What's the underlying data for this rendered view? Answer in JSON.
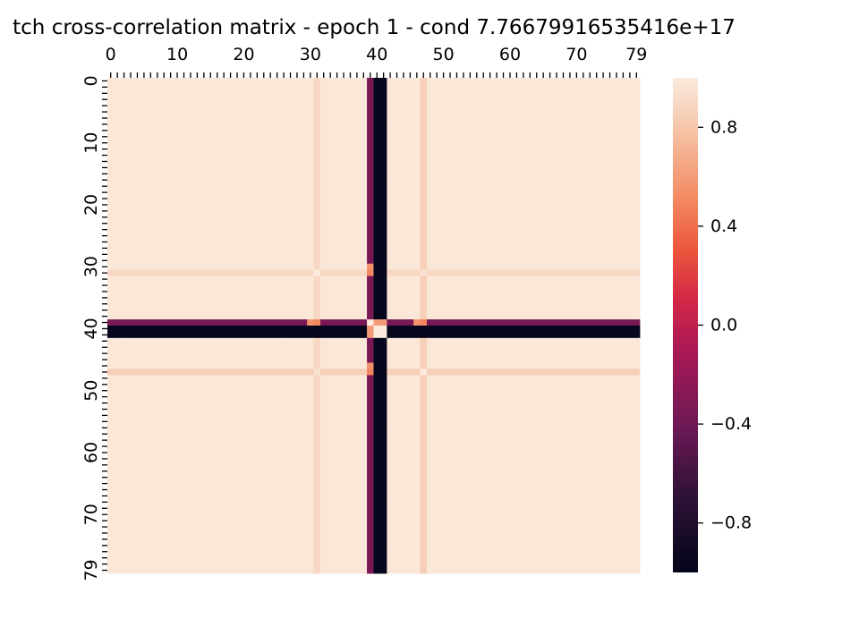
{
  "chart_data": {
    "type": "heatmap",
    "title": "tch cross-correlation matrix - epoch 1 - cond 7.76679916535416e+17",
    "n": 80,
    "x_ticks": [
      0,
      10,
      20,
      30,
      40,
      50,
      60,
      70,
      79
    ],
    "y_ticks": [
      0,
      10,
      20,
      30,
      40,
      50,
      60,
      70,
      79
    ],
    "xaxis_position": "top",
    "value_range": [
      -1.0,
      1.0
    ],
    "colorbar": {
      "ticks": [
        0.8,
        0.4,
        0.0,
        -0.4,
        -0.8
      ],
      "tick_labels": [
        "0.8",
        "0.4",
        "0.0",
        "−0.4",
        "−0.8"
      ],
      "colormap": "rocket"
    },
    "default_value": 0.98,
    "bands": [
      {
        "index": 31,
        "value": 0.9
      },
      {
        "index": 47,
        "value": 0.85
      },
      {
        "index": 39,
        "value": -0.35
      },
      {
        "index": 40,
        "value": -0.98
      },
      {
        "index": 41,
        "value": -0.98
      }
    ],
    "intersections": [
      {
        "i": 39,
        "j": 39,
        "value": 1.0
      },
      {
        "i": 40,
        "j": 40,
        "value": 1.0
      },
      {
        "i": 41,
        "j": 41,
        "value": 1.0
      },
      {
        "i": 40,
        "j": 41,
        "value": 1.0
      },
      {
        "i": 41,
        "j": 40,
        "value": 1.0
      },
      {
        "i": 40,
        "j": 39,
        "value": 0.6
      },
      {
        "i": 39,
        "j": 40,
        "value": 0.6
      },
      {
        "i": 41,
        "j": 39,
        "value": 0.6
      },
      {
        "i": 39,
        "j": 41,
        "value": 0.6
      },
      {
        "i": 30,
        "j": 39,
        "value": 0.55
      },
      {
        "i": 39,
        "j": 30,
        "value": 0.55
      },
      {
        "i": 46,
        "j": 39,
        "value": 0.55
      },
      {
        "i": 39,
        "j": 46,
        "value": 0.55
      },
      {
        "i": 31,
        "j": 39,
        "value": 0.5
      },
      {
        "i": 39,
        "j": 31,
        "value": 0.5
      },
      {
        "i": 47,
        "j": 39,
        "value": 0.5
      },
      {
        "i": 39,
        "j": 47,
        "value": 0.5
      },
      {
        "i": 31,
        "j": 31,
        "value": 1.0
      },
      {
        "i": 47,
        "j": 47,
        "value": 1.0
      },
      {
        "i": 31,
        "j": 47,
        "value": 0.95
      },
      {
        "i": 47,
        "j": 31,
        "value": 0.95
      }
    ]
  }
}
